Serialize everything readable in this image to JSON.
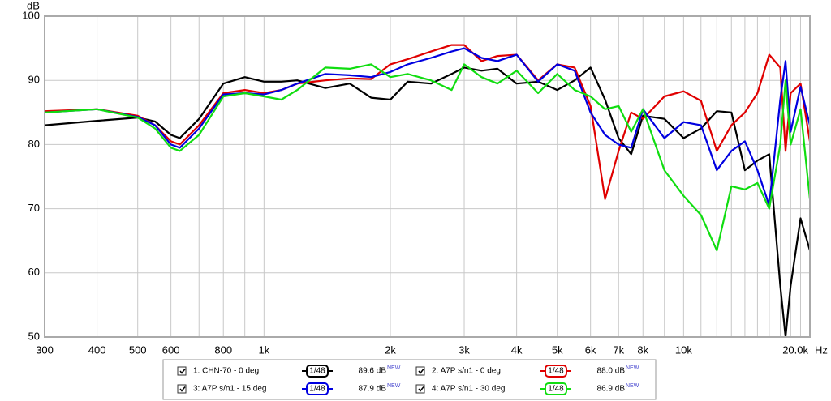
{
  "chart_data": {
    "type": "line",
    "y_label": "dB",
    "x_unit": "Hz",
    "xscale": "log",
    "xlim": [
      300,
      20000
    ],
    "ylim": [
      50,
      100
    ],
    "xticks": [
      300,
      {
        "value": 400,
        "label": "400"
      },
      {
        "value": 500,
        "label": "500"
      },
      {
        "value": 600,
        "label": "600"
      },
      {
        "value": 800,
        "label": "800"
      },
      {
        "value": 1000,
        "label": "1k"
      },
      {
        "value": 2000,
        "label": "2k"
      },
      {
        "value": 3000,
        "label": "3k"
      },
      {
        "value": 4000,
        "label": "4k"
      },
      {
        "value": 5000,
        "label": "5k"
      },
      {
        "value": 6000,
        "label": "6k"
      },
      {
        "value": 7000,
        "label": "7k"
      },
      {
        "value": 8000,
        "label": "8k"
      },
      {
        "value": 10000,
        "label": "10k"
      },
      {
        "value": 20000,
        "label": "20.0k"
      }
    ],
    "xgrid": [
      300,
      400,
      500,
      600,
      700,
      800,
      900,
      1000,
      2000,
      3000,
      4000,
      5000,
      6000,
      7000,
      8000,
      9000,
      10000,
      11000,
      12000,
      13000,
      14000,
      15000,
      16000,
      17000,
      18000,
      19000,
      20000
    ],
    "yticks": [
      50,
      60,
      70,
      80,
      90,
      100
    ],
    "grid": true,
    "x": [
      300,
      400,
      500,
      550,
      600,
      630,
      700,
      800,
      900,
      1000,
      1100,
      1200,
      1400,
      1600,
      1800,
      2000,
      2200,
      2500,
      2800,
      3000,
      3300,
      3600,
      4000,
      4500,
      5000,
      5500,
      6000,
      6500,
      7000,
      7500,
      8000,
      9000,
      10000,
      11000,
      12000,
      13000,
      14000,
      15000,
      16000,
      17000,
      17500,
      18000,
      19000,
      20000
    ],
    "new_tag": "NEW",
    "series": [
      {
        "name": "1: CHN-70 - 0 deg",
        "color": "#000000",
        "smoothing": "1/48",
        "level_label": "89.6 dB",
        "values": [
          83,
          83.7,
          84.2,
          83.6,
          81.5,
          81,
          84,
          89.5,
          90.5,
          89.8,
          89.8,
          90,
          88.8,
          89.5,
          87.3,
          87,
          89.8,
          89.5,
          91,
          92,
          91.5,
          91.8,
          89.5,
          89.8,
          88.5,
          90,
          92,
          87,
          81,
          78.5,
          84.5,
          84,
          81,
          82.5,
          85.2,
          85,
          76,
          77.5,
          78.5,
          58,
          50,
          58,
          68.5,
          63.5
        ]
      },
      {
        "name": "2: A7P s/n1 - 0 deg",
        "color": "#e00000",
        "smoothing": "1/48",
        "level_label": "88.0 dB",
        "values": [
          85.2,
          85.5,
          84.5,
          83,
          80.5,
          80,
          83,
          88,
          88.5,
          88,
          88.5,
          89.5,
          90,
          90.3,
          90.2,
          92.5,
          93.3,
          94.5,
          95.5,
          95.5,
          93,
          93.8,
          94,
          90,
          92.5,
          92,
          86,
          71.5,
          79,
          85,
          84,
          87.5,
          88.3,
          86.8,
          79,
          83,
          85,
          88,
          94,
          92,
          79,
          88,
          89.5,
          80.5
        ]
      },
      {
        "name": "3: A7P s/n1 - 15 deg",
        "color": "#0000e0",
        "smoothing": "1/48",
        "level_label": "87.9 dB",
        "values": [
          85,
          85.5,
          84.3,
          83,
          80,
          79.5,
          82.5,
          87.8,
          88,
          87.8,
          88.5,
          89.5,
          91,
          90.8,
          90.5,
          91.3,
          92.5,
          93.5,
          94.5,
          95,
          93.5,
          93,
          94,
          89.8,
          92.5,
          91.5,
          85,
          81.5,
          80,
          79.5,
          85.5,
          81,
          83.5,
          83,
          76,
          79,
          80.5,
          76,
          70.5,
          87,
          93,
          82,
          89,
          83
        ]
      },
      {
        "name": "4: A7P s/n1 - 30 deg",
        "color": "#10dd10",
        "smoothing": "1/48",
        "level_label": "86.9 dB",
        "values": [
          85,
          85.5,
          84.2,
          82.5,
          79.5,
          79,
          81.5,
          87.5,
          88,
          87.5,
          87,
          88.5,
          92,
          91.8,
          92.5,
          90.5,
          91,
          90,
          88.5,
          92.5,
          90.5,
          89.5,
          91.5,
          88,
          91,
          88.5,
          87.5,
          85.5,
          86,
          82,
          85.5,
          76,
          72,
          69,
          63.5,
          73.5,
          73,
          74,
          70,
          80,
          90,
          80,
          85.5,
          71.5
        ]
      }
    ]
  }
}
